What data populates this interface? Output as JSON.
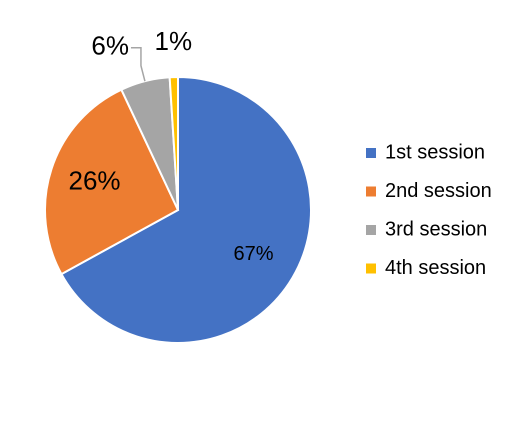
{
  "chart_data": {
    "type": "pie",
    "categories": [
      "1st session",
      "2nd session",
      "3rd session",
      "4th session"
    ],
    "values": [
      67,
      26,
      6,
      1
    ],
    "value_labels": [
      "67%",
      "26%",
      "6%",
      "1%"
    ],
    "colors": [
      "#4472c4",
      "#ed7d31",
      "#a5a5a5",
      "#ffc000"
    ],
    "legend": "right"
  }
}
